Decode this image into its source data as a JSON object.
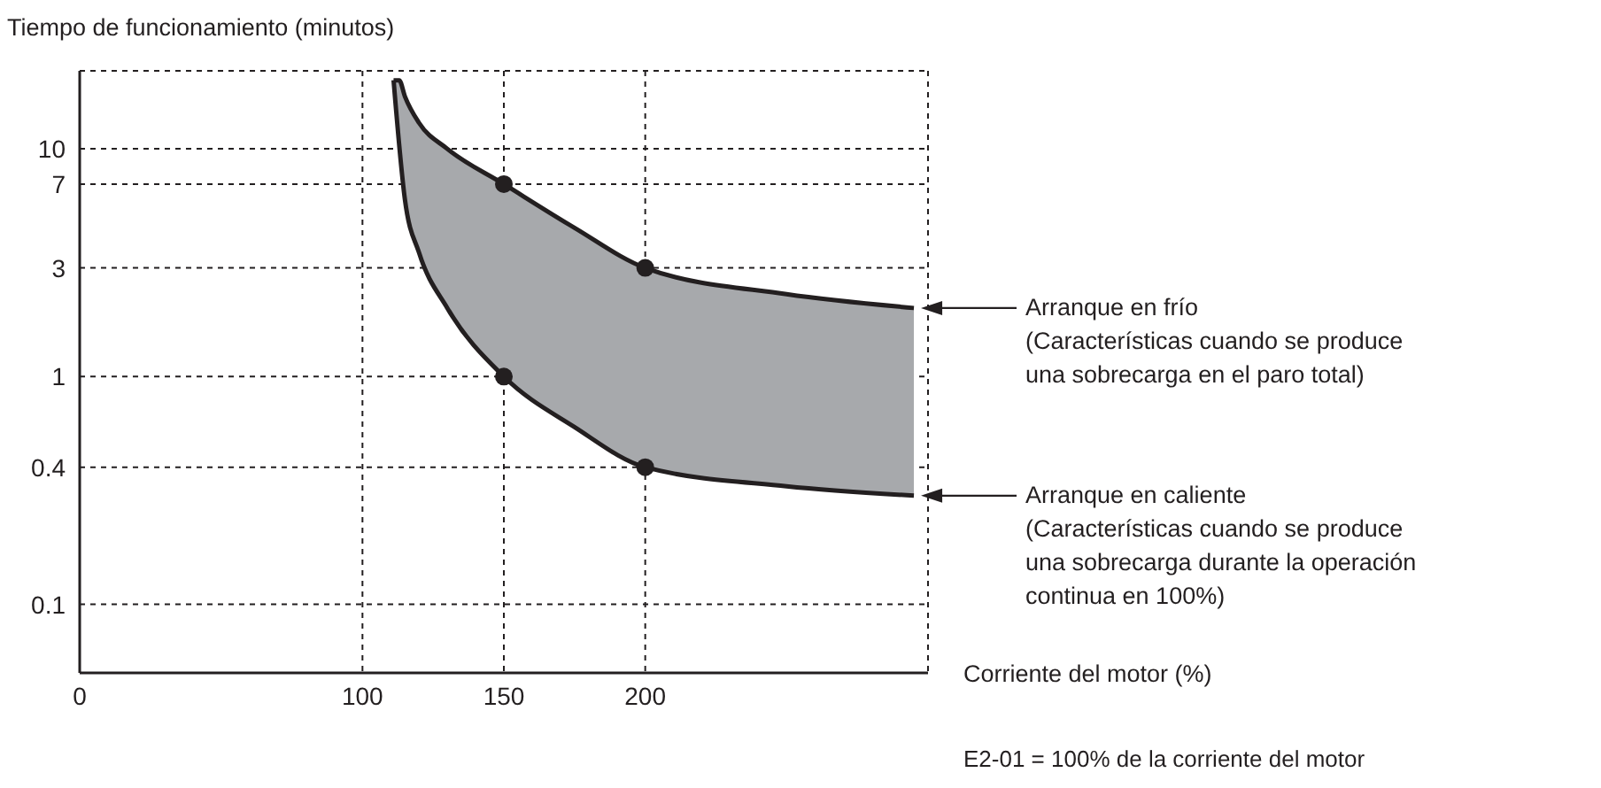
{
  "chart_data": {
    "type": "line",
    "ylabel": "Tiempo de funcionamiento (minutos)",
    "xlabel": "Corriente del motor (%)",
    "log": "y",
    "grid": true,
    "marker": "none",
    "xlim": [
      0,
      300
    ],
    "xticks": [
      0,
      100,
      150,
      200
    ],
    "ylim": [
      0.05,
      22
    ],
    "yticks": [
      0.1,
      0.4,
      1,
      3,
      7,
      10
    ],
    "series": [
      {
        "color": "#231f20",
        "x": [
          111,
          113,
          115,
          120,
          130,
          150,
          175,
          200,
          250,
          295
        ],
        "values": [
          20,
          20,
          17,
          13,
          10,
          7,
          4.5,
          3,
          2.3,
          2
        ],
        "lower": [
          20,
          10,
          6,
          3.5,
          2,
          1,
          0.6,
          0.4,
          0.33,
          0.3
        ],
        "upper": [
          20,
          20,
          17,
          13,
          10,
          7,
          4.5,
          3,
          2.3,
          2
        ]
      },
      {
        "color": "#231f20",
        "x": [
          111,
          115,
          120,
          130,
          150,
          175,
          200,
          250,
          295
        ],
        "values": [
          20,
          6,
          3.5,
          2,
          1,
          0.6,
          0.4,
          0.33,
          0.3
        ]
      },
      {
        "type": "scatter",
        "marker": "circle",
        "color": "#231f20",
        "x": [
          150,
          200,
          150,
          200
        ],
        "values": [
          7,
          3,
          1,
          0.4
        ]
      }
    ],
    "annotations": [
      "Arranque en frío\n(Características cuando se produce\nuna sobrecarga en el paro total)",
      "Arranque en caliente\n(Características cuando se produce\nuna sobrecarga durante la operación\ncontinua en 100%)",
      "E2-01 = 100% de la corriente del motor"
    ]
  }
}
